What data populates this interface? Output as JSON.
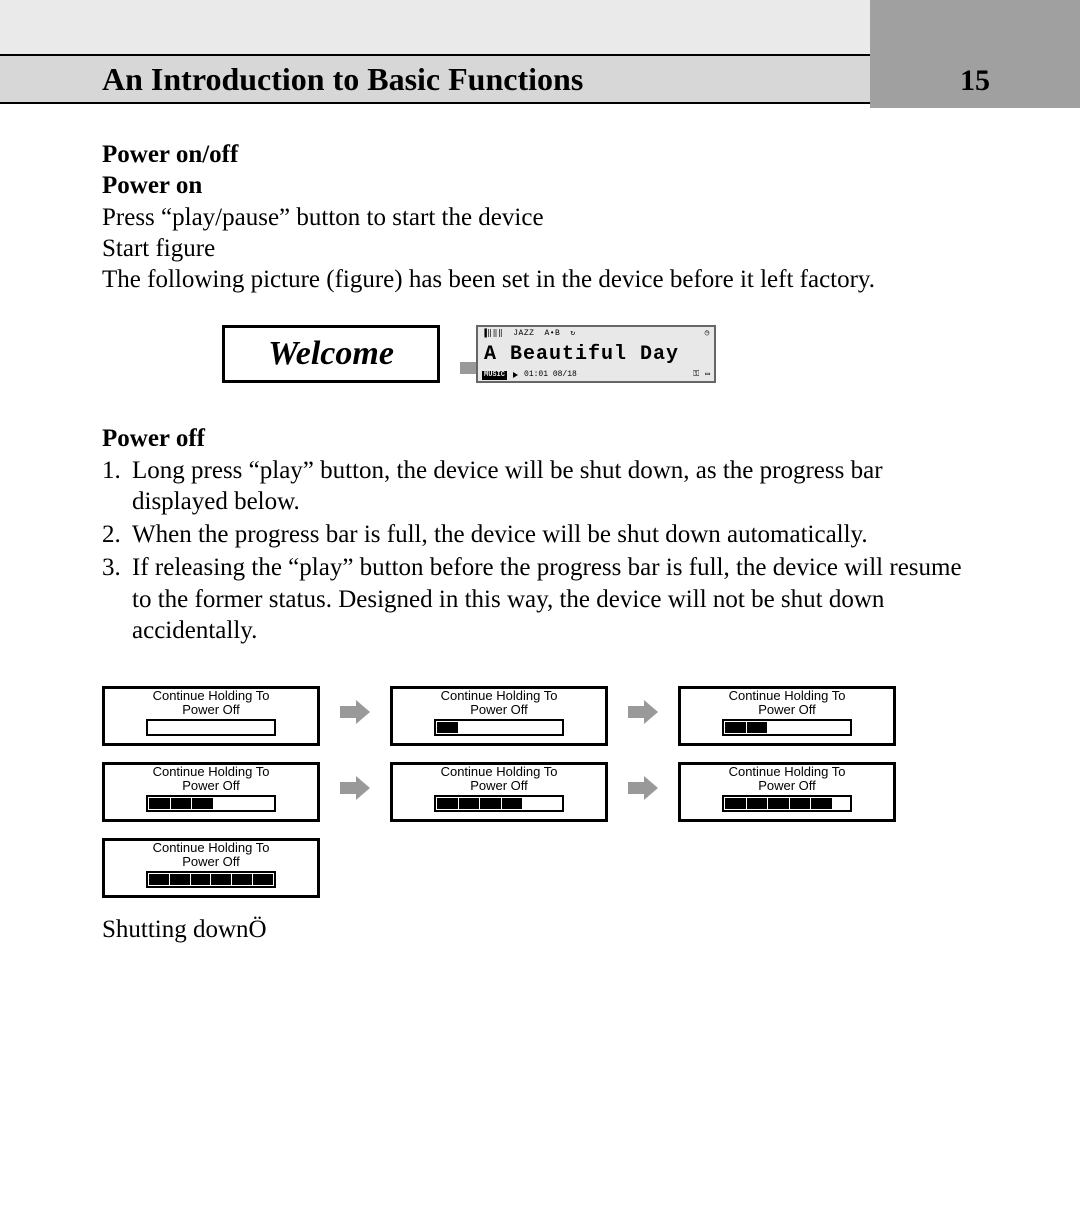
{
  "header": {
    "title": "An Introduction to Basic Functions",
    "page_number": "15",
    "title_bg": "#d7d7d7",
    "tab_bg": "#a0a0a0",
    "strip_bg": "#eaeaea"
  },
  "section_power_onoff": "Power on/off",
  "section_power_on": "Power on",
  "power_on_line1": "Press “play/pause” button to start the device",
  "power_on_line2": "Start figure",
  "power_on_line3": "The following picture (figure) has been set in the device before it left factory.",
  "welcome_text": "Welcome",
  "player": {
    "top_icons": "▐‖‖‖",
    "top_eq": "JAZZ",
    "top_ab": "A•B",
    "top_repeat": "↻",
    "top_clock": "◷",
    "track_title": "A Beautiful Day",
    "bottom_badge": "MUSIC",
    "bottom_time": "01:01 08/18",
    "bottom_lock": "⚿",
    "bottom_batt": "▭"
  },
  "section_power_off": "Power off",
  "poweroff_items": [
    {
      "n": "1.",
      "t": "Long press “play” button, the device will be shut down, as the progress bar displayed below."
    },
    {
      "n": "2.",
      "t": "When the progress bar is full, the device will be shut down automatically."
    },
    {
      "n": "3.",
      "t": "If releasing the “play” button before the progress bar is full, the device will resume to the former status. Designed in this way, the device will not be shut down accidentally."
    }
  ],
  "progress": {
    "line1": "Continue Holding To",
    "line2": "Power Off",
    "total_segments": 6,
    "frames": [
      0,
      1,
      2,
      3,
      4,
      5,
      6
    ]
  },
  "shutting_text": "Shutting downÖ",
  "colors": {
    "border": "#000000",
    "bg": "#ffffff",
    "arrow": "#999999"
  }
}
